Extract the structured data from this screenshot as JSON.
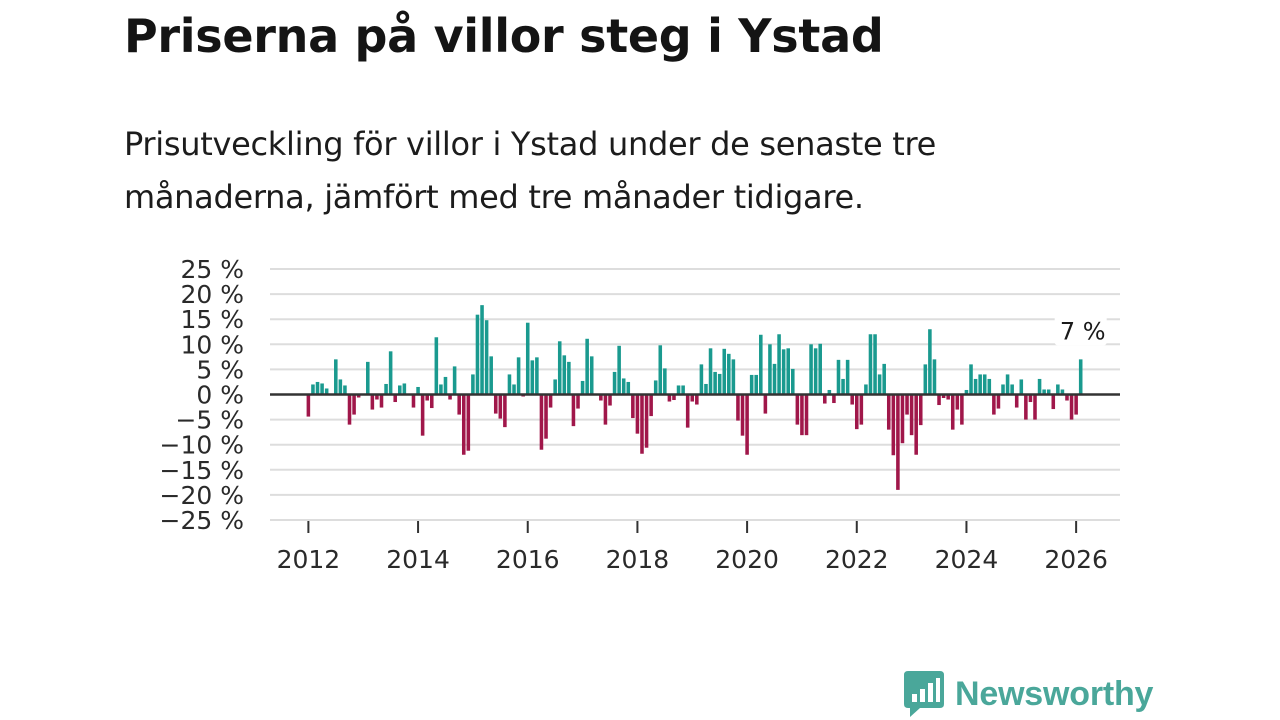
{
  "title": "Priserna på villor steg i Ystad",
  "subtitle": "Prisutveckling för villor i Ystad under de senaste tre månaderna, jämfört med tre månader tidigare.",
  "brand": {
    "name": "Newsworthy",
    "icon": "newsworthy-logo-icon"
  },
  "colors": {
    "positive": "#1a9a8f",
    "negative": "#a0174a",
    "grid": "#dddddd",
    "zero_line": "#333333",
    "brand": "#4aa79a"
  },
  "chart_data": {
    "type": "bar",
    "title": "Priserna på villor steg i Ystad",
    "xlabel": "",
    "ylabel": "",
    "ylim": [
      -25,
      25
    ],
    "yticks": [
      25,
      20,
      15,
      10,
      5,
      0,
      -5,
      -10,
      -15,
      -20,
      -25
    ],
    "ytick_labels": [
      "25 %",
      "20 %",
      "15 %",
      "10 %",
      "5 %",
      "0 %",
      "−5 %",
      "−10 %",
      "−15 %",
      "−20 %",
      "−25 %"
    ],
    "xlim": [
      2011.3,
      2026.8
    ],
    "xticks": [
      2012,
      2014,
      2016,
      2018,
      2020,
      2022,
      2024,
      2026
    ],
    "xtick_labels": [
      "2012",
      "2014",
      "2016",
      "2018",
      "2020",
      "2022",
      "2024",
      "2026"
    ],
    "start": [
      2012,
      1
    ],
    "values": [
      -4.4,
      2.0,
      2.5,
      2.2,
      1.2,
      0,
      7.0,
      3.0,
      1.8,
      -6.0,
      -4.0,
      -0.6,
      0,
      6.5,
      -3.0,
      -1.0,
      -2.6,
      2.1,
      8.6,
      -1.5,
      1.8,
      2.2,
      0,
      -2.6,
      1.5,
      -8.2,
      -1.2,
      -2.7,
      11.4,
      2.0,
      3.5,
      -1.0,
      5.6,
      -4.0,
      -12.0,
      -11.2,
      4.0,
      15.9,
      17.8,
      14.8,
      7.6,
      -3.8,
      -4.8,
      -6.5,
      4.0,
      2.0,
      7.4,
      -0.4,
      14.3,
      6.8,
      7.4,
      -11.0,
      -8.8,
      -2.6,
      3.0,
      10.6,
      7.8,
      6.5,
      -6.3,
      -2.8,
      2.7,
      11.1,
      7.6,
      0,
      -1.2,
      -6.0,
      -2.2,
      4.5,
      9.7,
      3.2,
      2.5,
      -4.7,
      -7.8,
      -11.8,
      -10.6,
      -4.3,
      2.8,
      9.8,
      5.2,
      -1.4,
      -1.1,
      1.8,
      1.8,
      -6.6,
      -1.4,
      -2.0,
      6.0,
      2.1,
      9.2,
      4.5,
      4.1,
      9.1,
      8.1,
      7.0,
      -5.2,
      -8.2,
      -12.0,
      3.9,
      3.9,
      11.9,
      -3.8,
      10.0,
      6.1,
      12.0,
      9.0,
      9.2,
      5.1,
      -6.0,
      -8.1,
      -8.1,
      10.0,
      9.2,
      10.1,
      -1.8,
      0.9,
      -1.7,
      6.9,
      3.1,
      6.9,
      -2.0,
      -6.9,
      -6.0,
      2.0,
      12.0,
      12.0,
      4.0,
      6.1,
      -7.0,
      -12.1,
      -19.0,
      -9.7,
      -4.0,
      -8.1,
      -12.0,
      -6.1,
      6.0,
      13.0,
      7.0,
      -2.1,
      -0.7,
      -1.0,
      -7.0,
      -3.0,
      -6.0,
      0.9,
      6.0,
      3.1,
      4.0,
      4.0,
      3.1,
      -4.0,
      -2.8,
      2.0,
      4.0,
      2.0,
      -2.6,
      3.0,
      -5.0,
      -1.5,
      -5.0,
      3.1,
      1.0,
      1.0,
      -2.9,
      2.0,
      1.0,
      -1.2,
      -5.0,
      -4.0,
      7.0
    ],
    "annotation": {
      "text": "7 %",
      "target": "last"
    }
  }
}
